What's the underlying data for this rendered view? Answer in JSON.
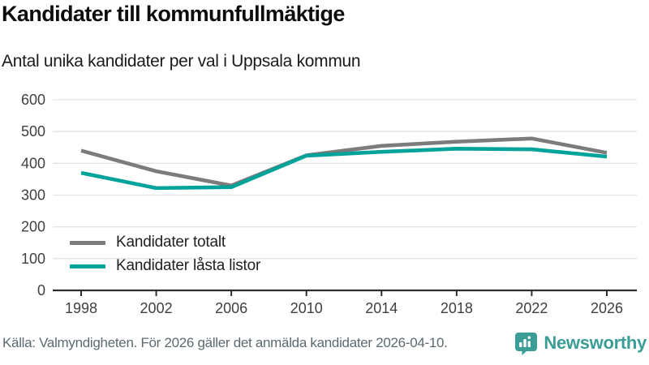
{
  "header": {
    "title": "Kandidater till kommunfullmäktige",
    "subtitle": "Antal unika kandidater per val i Uppsala kommun"
  },
  "chart_data": {
    "type": "line",
    "x": [
      1998,
      2002,
      2006,
      2010,
      2014,
      2018,
      2022,
      2026
    ],
    "series": [
      {
        "name": "Kandidater totalt",
        "color": "#7c7c7c",
        "values": [
          440,
          375,
          330,
          425,
          455,
          468,
          478,
          433
        ]
      },
      {
        "name": "Kandidater låsta listor",
        "color": "#00a39a",
        "values": [
          370,
          322,
          325,
          424,
          436,
          446,
          444,
          421
        ]
      }
    ],
    "ylim": [
      0,
      600
    ],
    "yticks": [
      0,
      100,
      200,
      300,
      400,
      500,
      600
    ],
    "grid": "horizontal",
    "legend_position": "inside-bottom-left",
    "xlabel": "",
    "ylabel": ""
  },
  "footer": {
    "source": "Källa: Valmyndigheten. För 2026 gäller det anmälda kandidater 2026-04-10.",
    "brand": "Newsworthy"
  },
  "colors": {
    "gridline": "#e3e3e3",
    "axis": "#2f2f2f",
    "tick_label": "#404040",
    "brand_teal": "#3b9e96"
  }
}
